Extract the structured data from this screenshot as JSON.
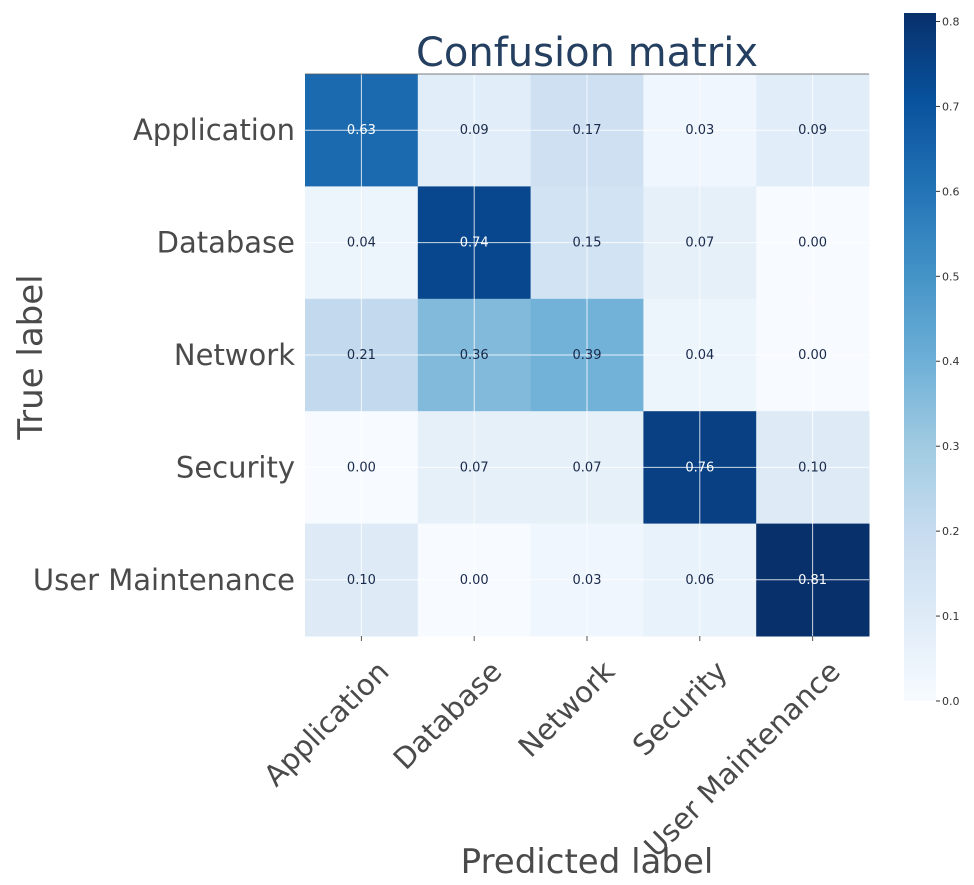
{
  "chart_data": {
    "type": "heatmap",
    "title": "Confusion matrix",
    "xlabel": "Predicted label",
    "ylabel": "True label",
    "x_categories": [
      "Application",
      "Database",
      "Network",
      "Security",
      "User Maintenance"
    ],
    "y_categories": [
      "Application",
      "Database",
      "Network",
      "Security",
      "User Maintenance"
    ],
    "values": [
      [
        0.63,
        0.09,
        0.17,
        0.03,
        0.09
      ],
      [
        0.04,
        0.74,
        0.15,
        0.07,
        0.0
      ],
      [
        0.21,
        0.36,
        0.39,
        0.04,
        0.0
      ],
      [
        0.0,
        0.07,
        0.07,
        0.76,
        0.1
      ],
      [
        0.1,
        0.0,
        0.03,
        0.06,
        0.81
      ]
    ],
    "cell_labels": [
      [
        "0.63",
        "0.09",
        "0.17",
        "0.03",
        "0.09"
      ],
      [
        "0.04",
        "0.74",
        "0.15",
        "0.07",
        "0.00"
      ],
      [
        "0.21",
        "0.36",
        "0.39",
        "0.04",
        "0.00"
      ],
      [
        "0.00",
        "0.07",
        "0.07",
        "0.76",
        "0.10"
      ],
      [
        "0.10",
        "0.00",
        "0.03",
        "0.06",
        "0.81"
      ]
    ],
    "colormap": "Blues",
    "colorbar": {
      "range": [
        0.0,
        0.81
      ],
      "ticks": [
        0.0,
        0.1,
        0.2,
        0.3,
        0.4,
        0.5,
        0.6,
        0.7,
        0.8
      ],
      "tick_labels": [
        "0.0",
        "0.1",
        "0.2",
        "0.3",
        "0.4",
        "0.5",
        "0.6",
        "0.7",
        "0.8"
      ]
    },
    "grid": true,
    "colors": {
      "title": "#243f60",
      "axis_text": "#4a4a4a",
      "grid": "#ffffff",
      "label_dark": "#1a2a4a",
      "label_light": "#ffffff"
    }
  }
}
